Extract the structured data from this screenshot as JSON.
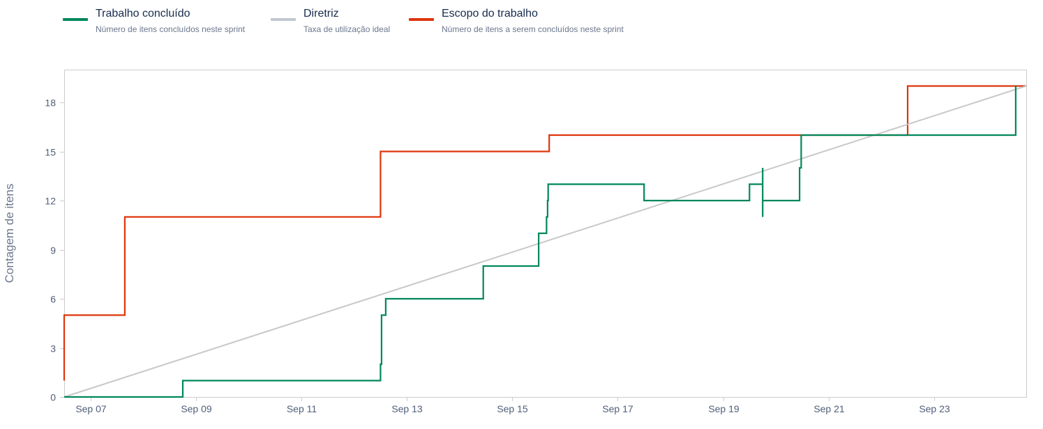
{
  "legend": [
    {
      "title": "Trabalho concluído",
      "desc": "Número de itens concluídos neste sprint",
      "color": "#00875a"
    },
    {
      "title": "Diretriz",
      "desc": "Taxa de utilização ideal",
      "color": "#c1c7d0"
    },
    {
      "title": "Escopo do trabalho",
      "desc": "Número de itens a serem concluídos neste sprint",
      "color": "#de350b"
    }
  ],
  "chart_data": {
    "type": "line",
    "title": "",
    "ylabel": "Contagem de itens",
    "xlabel": "",
    "xlim": [
      6.5,
      24.75
    ],
    "ylim": [
      0,
      20
    ],
    "grid": false,
    "legend_position": "top-left",
    "x_ticks": [
      {
        "value": 7,
        "label": "Sep 07"
      },
      {
        "value": 9,
        "label": "Sep 09"
      },
      {
        "value": 11,
        "label": "Sep 11"
      },
      {
        "value": 13,
        "label": "Sep 13"
      },
      {
        "value": 15,
        "label": "Sep 15"
      },
      {
        "value": 17,
        "label": "Sep 17"
      },
      {
        "value": 19,
        "label": "Sep 19"
      },
      {
        "value": 21,
        "label": "Sep 21"
      },
      {
        "value": 23,
        "label": "Sep 23"
      }
    ],
    "y_ticks": [
      0,
      3,
      6,
      9,
      12,
      15,
      18
    ],
    "series": [
      {
        "name": "Escopo do trabalho",
        "color": "#de350b",
        "step": true,
        "points": [
          [
            6.5,
            1
          ],
          [
            6.5,
            5
          ],
          [
            7.65,
            11
          ],
          [
            12.5,
            15
          ],
          [
            15.7,
            16
          ],
          [
            22.5,
            19
          ],
          [
            24.75,
            19
          ]
        ]
      },
      {
        "name": "Diretriz",
        "color": "#c8c8c8",
        "step": false,
        "points": [
          [
            6.5,
            0
          ],
          [
            24.75,
            19
          ]
        ]
      },
      {
        "name": "Trabalho concluído",
        "color": "#00875a",
        "step": true,
        "points": [
          [
            6.5,
            0
          ],
          [
            8.75,
            1
          ],
          [
            12.5,
            2
          ],
          [
            12.52,
            5
          ],
          [
            12.6,
            6
          ],
          [
            14.45,
            8
          ],
          [
            15.5,
            10
          ],
          [
            15.65,
            11
          ],
          [
            15.67,
            12
          ],
          [
            15.68,
            13
          ],
          [
            17.5,
            12
          ],
          [
            19.5,
            13
          ],
          [
            19.75,
            14
          ],
          [
            19.75,
            11
          ],
          [
            19.75,
            12
          ],
          [
            20.45,
            14
          ],
          [
            20.48,
            16
          ],
          [
            24.55,
            19
          ]
        ]
      }
    ]
  }
}
